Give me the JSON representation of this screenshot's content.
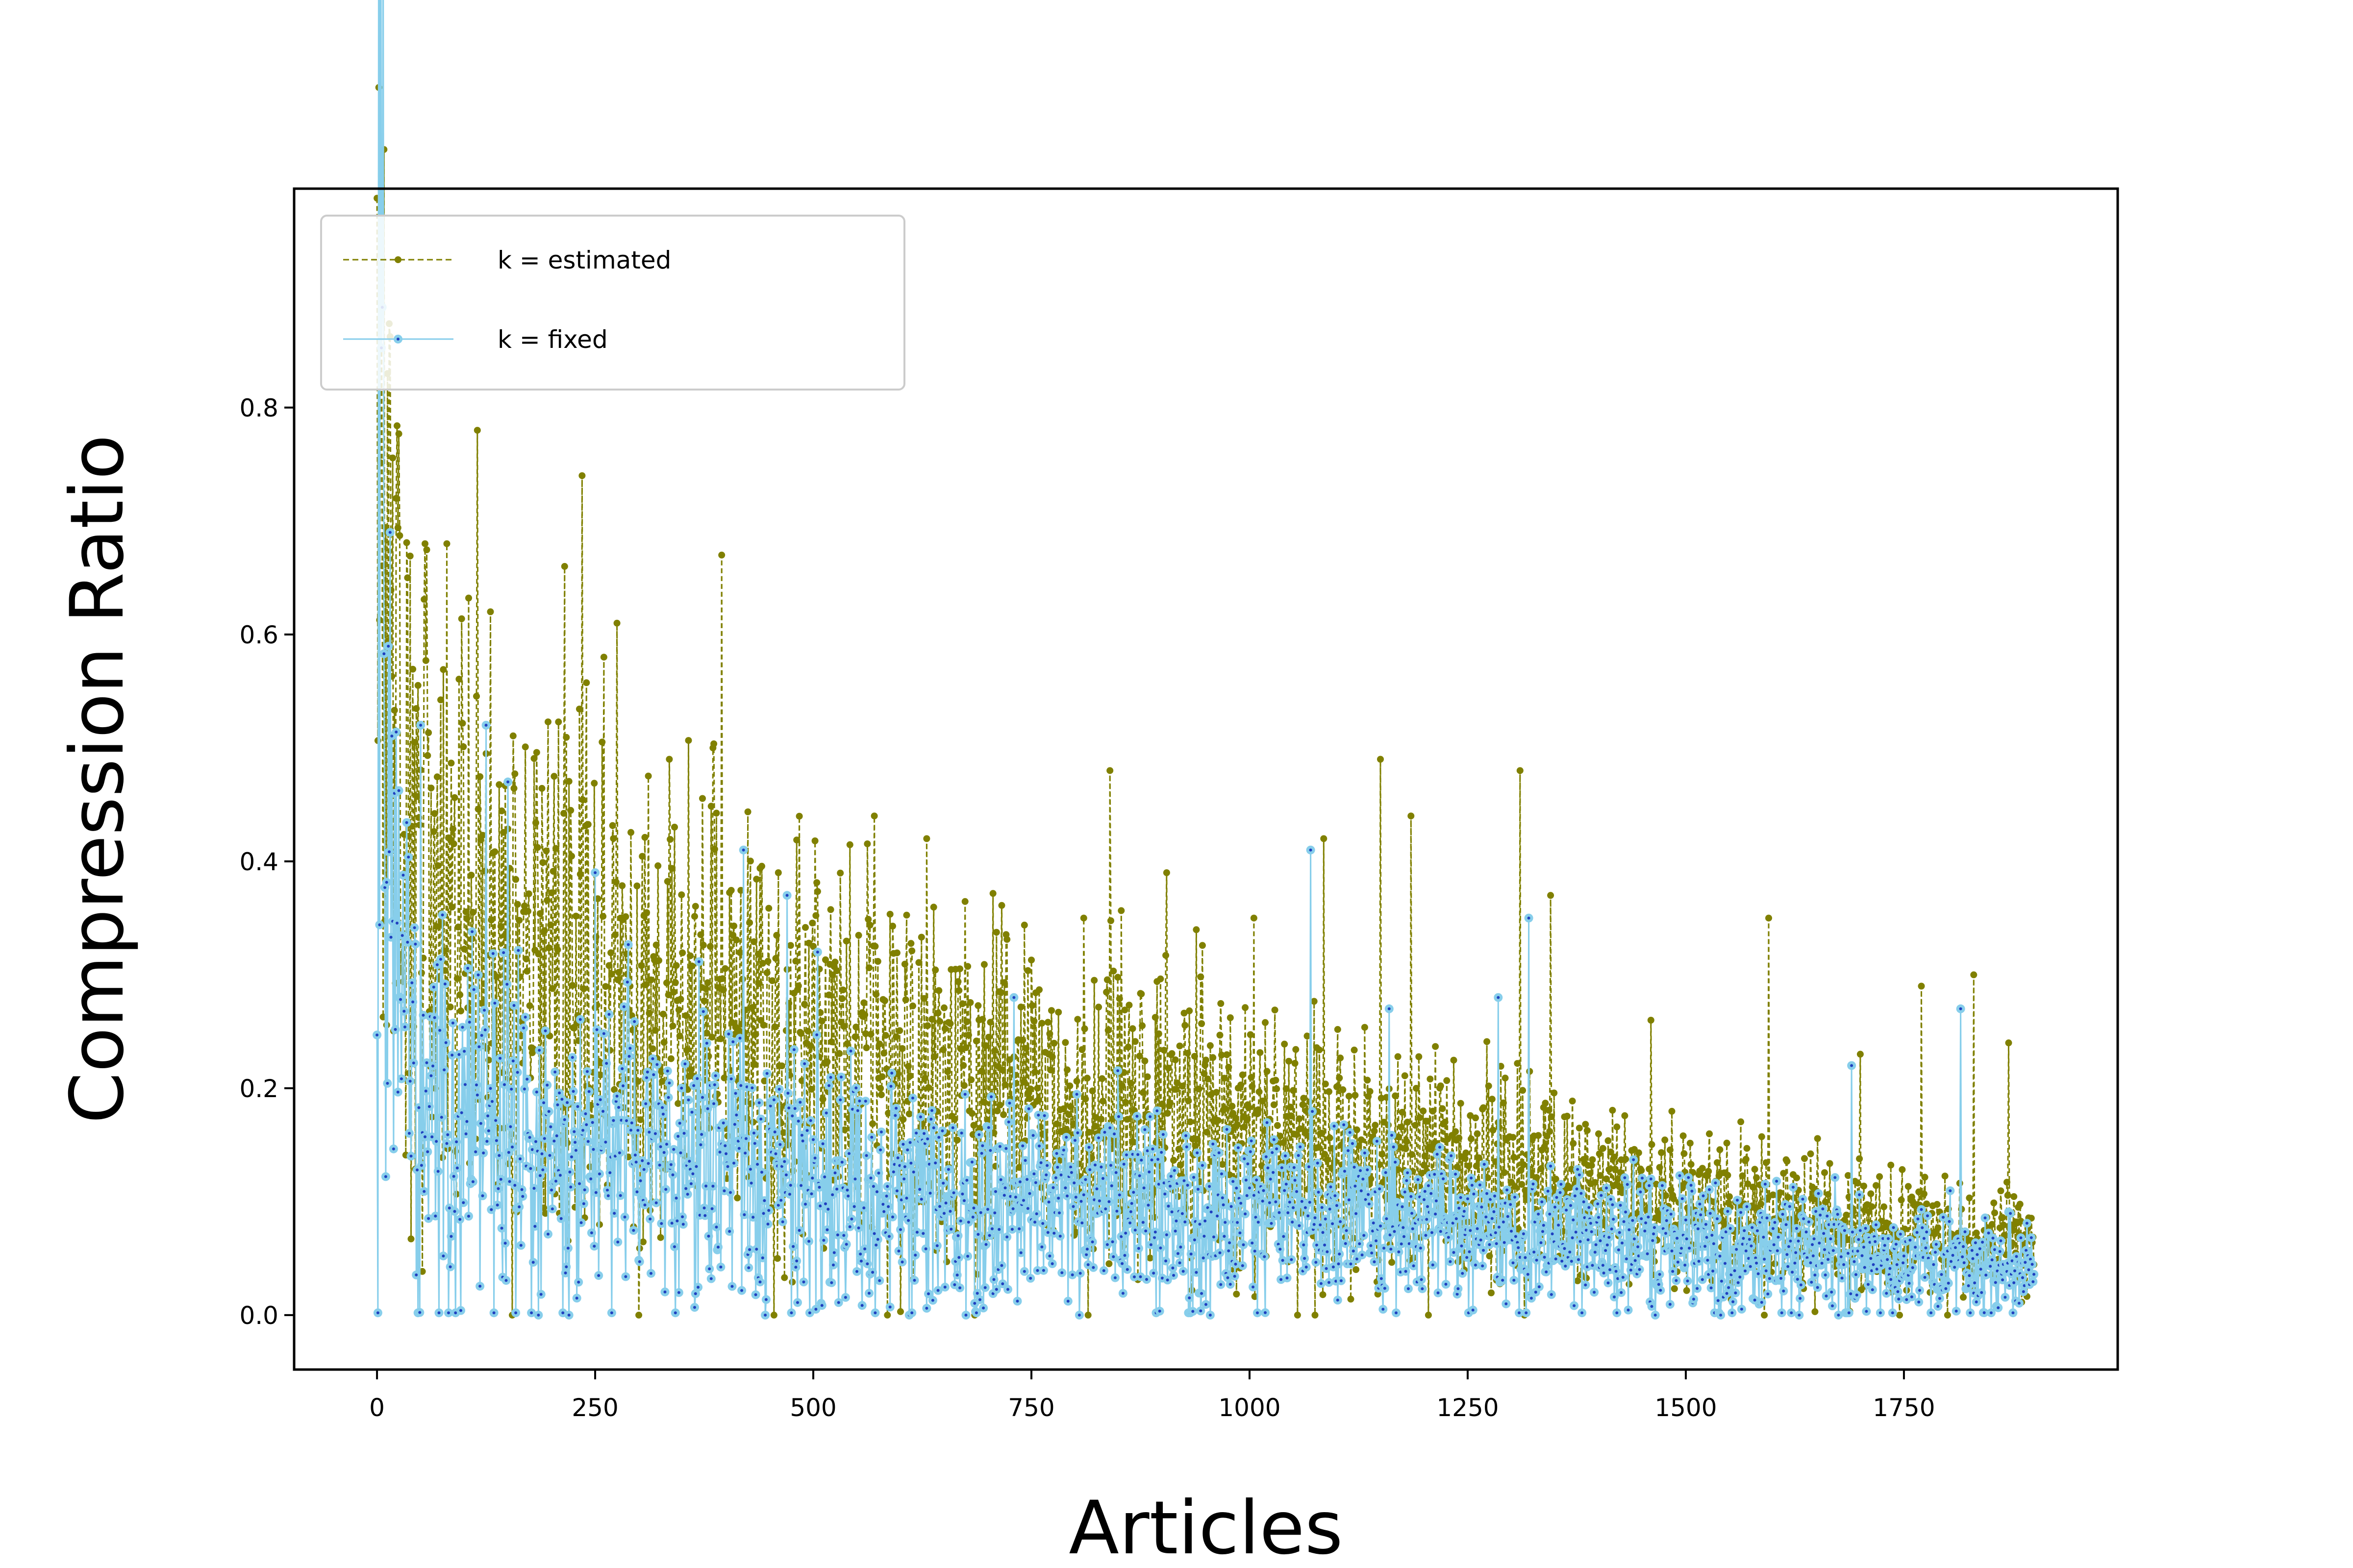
{
  "chart_data": {
    "type": "line",
    "title": "",
    "xlabel": "Articles",
    "ylabel": "Compression Ratio",
    "xlim": [
      -95,
      1995
    ],
    "ylim": [
      -0.048,
      0.993
    ],
    "x_ticks": [
      0,
      250,
      500,
      750,
      1000,
      1250,
      1500,
      1750
    ],
    "y_ticks": [
      0.0,
      0.2,
      0.4,
      0.6,
      0.8
    ],
    "x_tick_labels": [
      "0",
      "250",
      "500",
      "750",
      "1000",
      "1250",
      "1500",
      "1750"
    ],
    "y_tick_labels": [
      "0.0",
      "0.2",
      "0.4",
      "0.6",
      "0.8"
    ],
    "grid": false,
    "legend_position": "upper-left",
    "n_points": 1900,
    "series": [
      {
        "name": "k = estimated",
        "color": "#808000",
        "line_style": "dashed",
        "marker": "small-dot",
        "trend_points": [
          [
            0,
            0.93
          ],
          [
            10,
            0.6
          ],
          [
            25,
            0.45
          ],
          [
            50,
            0.38
          ],
          [
            100,
            0.34
          ],
          [
            200,
            0.3
          ],
          [
            300,
            0.28
          ],
          [
            400,
            0.26
          ],
          [
            500,
            0.235
          ],
          [
            600,
            0.22
          ],
          [
            700,
            0.205
          ],
          [
            800,
            0.185
          ],
          [
            900,
            0.17
          ],
          [
            1000,
            0.155
          ],
          [
            1100,
            0.14
          ],
          [
            1200,
            0.125
          ],
          [
            1300,
            0.115
          ],
          [
            1400,
            0.105
          ],
          [
            1500,
            0.095
          ],
          [
            1600,
            0.085
          ],
          [
            1700,
            0.075
          ],
          [
            1800,
            0.065
          ],
          [
            1900,
            0.06
          ]
        ],
        "spikes": [
          [
            12,
            0.83
          ],
          [
            22,
            0.72
          ],
          [
            35,
            0.65
          ],
          [
            55,
            0.68
          ],
          [
            80,
            0.68
          ],
          [
            115,
            0.78
          ],
          [
            130,
            0.62
          ],
          [
            155,
            0.66
          ],
          [
            215,
            0.66
          ],
          [
            235,
            0.74
          ],
          [
            260,
            0.58
          ],
          [
            275,
            0.61
          ],
          [
            335,
            0.49
          ],
          [
            385,
            0.5
          ],
          [
            395,
            0.67
          ],
          [
            460,
            0.39
          ],
          [
            570,
            0.44
          ],
          [
            630,
            0.42
          ],
          [
            685,
            0.46
          ],
          [
            810,
            0.35
          ],
          [
            840,
            0.48
          ],
          [
            905,
            0.39
          ],
          [
            1005,
            0.35
          ],
          [
            1085,
            0.42
          ],
          [
            1150,
            0.49
          ],
          [
            1185,
            0.44
          ],
          [
            1310,
            0.48
          ],
          [
            1345,
            0.37
          ],
          [
            1460,
            0.26
          ],
          [
            1595,
            0.35
          ],
          [
            1700,
            0.23
          ],
          [
            1770,
            0.29
          ],
          [
            1830,
            0.3
          ],
          [
            1870,
            0.24
          ]
        ],
        "zeros": [
          155,
          300,
          455,
          585,
          685,
          815,
          1055,
          1075,
          1205,
          1315,
          1590,
          1745,
          1800
        ]
      },
      {
        "name": "k = fixed",
        "color": "#87ceeb",
        "line_style": "solid",
        "marker": "ring-dot",
        "trend_points": [
          [
            0,
            0.95
          ],
          [
            10,
            0.5
          ],
          [
            25,
            0.25
          ],
          [
            50,
            0.2
          ],
          [
            100,
            0.17
          ],
          [
            200,
            0.15
          ],
          [
            300,
            0.14
          ],
          [
            400,
            0.13
          ],
          [
            500,
            0.12
          ],
          [
            600,
            0.11
          ],
          [
            700,
            0.1
          ],
          [
            800,
            0.095
          ],
          [
            900,
            0.09
          ],
          [
            1000,
            0.085
          ],
          [
            1100,
            0.08
          ],
          [
            1200,
            0.075
          ],
          [
            1300,
            0.07
          ],
          [
            1400,
            0.065
          ],
          [
            1500,
            0.06
          ],
          [
            1600,
            0.055
          ],
          [
            1700,
            0.05
          ],
          [
            1800,
            0.045
          ],
          [
            1900,
            0.04
          ]
        ],
        "spikes": [
          [
            15,
            0.69
          ],
          [
            50,
            0.52
          ],
          [
            125,
            0.52
          ],
          [
            150,
            0.47
          ],
          [
            250,
            0.39
          ],
          [
            420,
            0.41
          ],
          [
            470,
            0.37
          ],
          [
            505,
            0.32
          ],
          [
            730,
            0.28
          ],
          [
            1070,
            0.41
          ],
          [
            1160,
            0.27
          ],
          [
            1285,
            0.28
          ],
          [
            1320,
            0.35
          ],
          [
            1690,
            0.22
          ],
          [
            1815,
            0.27
          ]
        ],
        "zeros": [
          185,
          220,
          445,
          610,
          675,
          805,
          955,
          1465,
          1540,
          1630,
          1675
        ]
      }
    ]
  }
}
